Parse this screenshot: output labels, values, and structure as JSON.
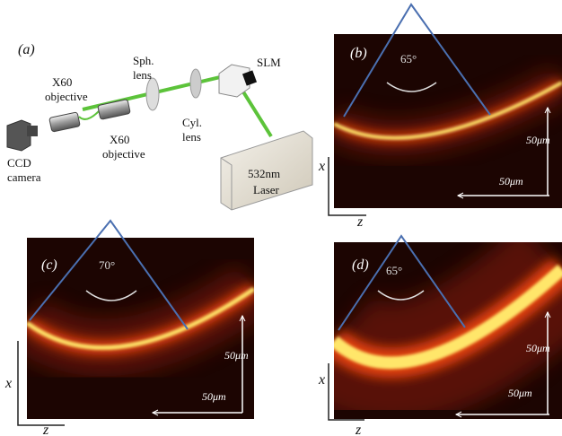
{
  "schematic": {
    "label": "(a)",
    "components": [
      {
        "lines": [
          "X60",
          "objective"
        ]
      },
      {
        "lines": [
          "Sph.",
          "lens"
        ]
      },
      {
        "lines": [
          "SLM"
        ]
      },
      {
        "lines": [
          "Cyl.",
          "lens"
        ]
      },
      {
        "lines": [
          "X60",
          "objective"
        ]
      },
      {
        "lines": [
          "CCD",
          "camera"
        ]
      },
      {
        "lines": [
          "532nm",
          "Laser"
        ]
      }
    ]
  },
  "panels": [
    {
      "label": "(b)",
      "angle": "65°",
      "scale_vertical": "50μm",
      "scale_horizontal": "50μm",
      "axis_x": "x",
      "axis_z": "z"
    },
    {
      "label": "(c)",
      "angle": "70°",
      "scale_vertical": "50μm",
      "scale_horizontal": "50μm",
      "axis_x": "x",
      "axis_z": "z"
    },
    {
      "label": "(d)",
      "angle": "65°",
      "scale_vertical": "50μm",
      "scale_horizontal": "50μm",
      "axis_x": "x",
      "axis_z": "z"
    }
  ]
}
